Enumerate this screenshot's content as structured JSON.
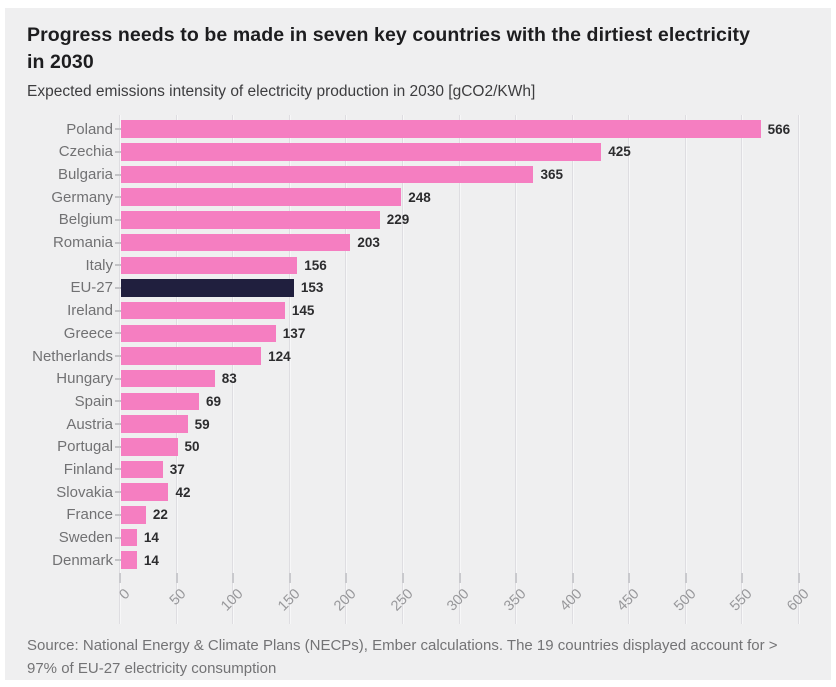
{
  "header": {
    "title": "Progress needs to be made in seven key countries with the dirtiest electricity in 2030",
    "subtitle": "Expected emissions intensity of electricity production in 2030 [gCO2/KWh]"
  },
  "chart_data": {
    "type": "bar",
    "orientation": "horizontal",
    "title": "Progress needs to be made in seven key countries with the dirtiest electricity in 2030",
    "subtitle": "Expected emissions intensity of electricity production in 2030 [gCO2/KWh]",
    "categories": [
      "Poland",
      "Czechia",
      "Bulgaria",
      "Germany",
      "Belgium",
      "Romania",
      "Italy",
      "EU-27",
      "Ireland",
      "Greece",
      "Netherlands",
      "Hungary",
      "Spain",
      "Austria",
      "Portugal",
      "Finland",
      "Slovakia",
      "France",
      "Sweden",
      "Denmark"
    ],
    "values": [
      566,
      425,
      365,
      248,
      229,
      203,
      156,
      153,
      145,
      137,
      124,
      83,
      69,
      59,
      50,
      37,
      42,
      22,
      14,
      14
    ],
    "highlight_category": "EU-27",
    "value_labels": true,
    "grid": true,
    "legend": false,
    "xlabel": "",
    "ylabel": "",
    "xlim": [
      0,
      600
    ],
    "xticks": [
      0,
      50,
      100,
      150,
      200,
      250,
      300,
      350,
      400,
      450,
      500,
      550,
      600
    ],
    "colors": {
      "bar": "#f57ec1",
      "highlight_bar": "#201f3e",
      "background": "#efeff0",
      "gridline": "#dedde1",
      "axis_tick": "#c9c9cd",
      "axis_label": "#98989b",
      "category_label": "#717173",
      "value_label": "#2c2c2e"
    }
  },
  "footer": {
    "source": "Source: National Energy & Climate Plans (NECPs), Ember calculations. The 19 countries displayed account for > 97% of EU-27 electricity consumption"
  }
}
